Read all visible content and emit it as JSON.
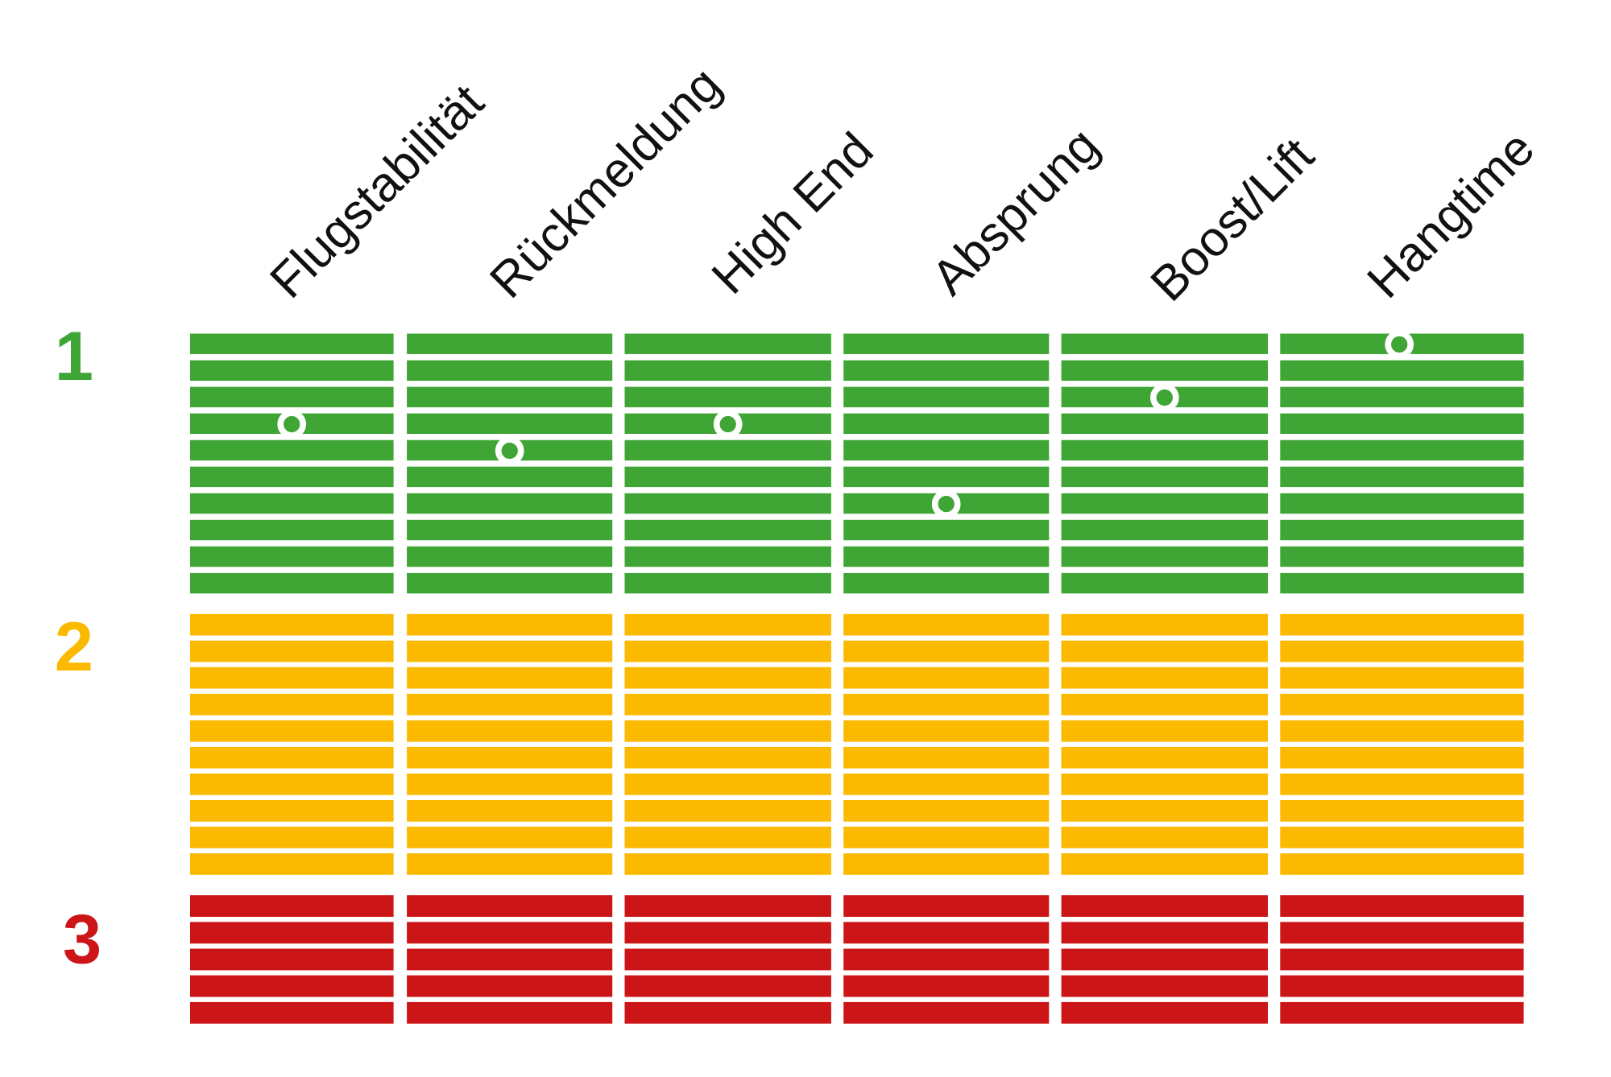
{
  "chart_data": {
    "type": "scatter",
    "categories": [
      "Flugstabilität",
      "Rückmeldung",
      "High End",
      "Absprung",
      "Boost/Lift",
      "Hangtime"
    ],
    "zones": [
      {
        "label": "1",
        "color": "#3fa535",
        "rows": 10
      },
      {
        "label": "2",
        "color": "#fbb900",
        "rows": 10
      },
      {
        "label": "3",
        "color": "#cc1517",
        "rows": 5
      }
    ],
    "values": [
      3.5,
      4.5,
      3.5,
      6.5,
      2.5,
      0.5
    ],
    "value_unit": "row index from top of zone 1 (row centers at n + 0.5)",
    "marker": "white ring",
    "grid_line_color": "#ffffff",
    "legend": "none"
  }
}
